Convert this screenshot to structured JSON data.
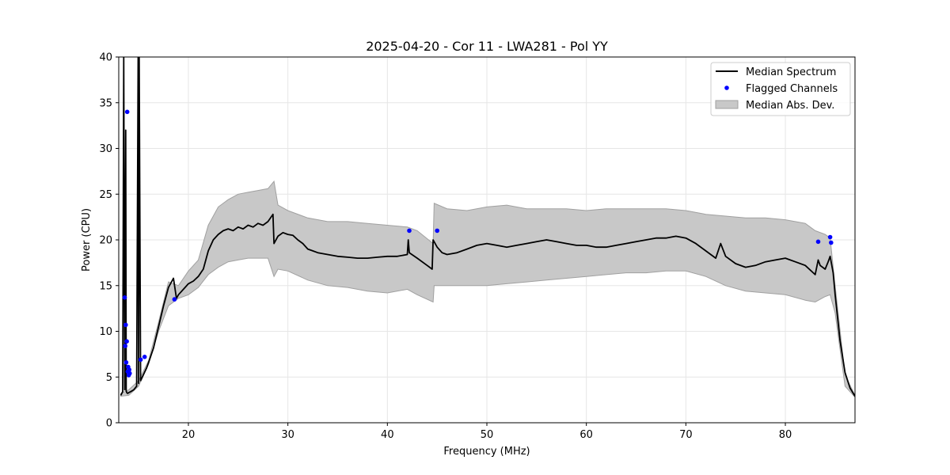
{
  "chart_data": {
    "type": "line",
    "title": "2025-04-20 - Cor 11 - LWA281 - Pol YY",
    "xlabel": "Frequency (MHz)",
    "ylabel": "Power (CPU)",
    "xlim": [
      13.0,
      87.0
    ],
    "ylim": [
      0,
      40
    ],
    "xticks": [
      20,
      30,
      40,
      50,
      60,
      70,
      80
    ],
    "yticks": [
      0,
      5,
      10,
      15,
      20,
      25,
      30,
      35,
      40
    ],
    "grid": true,
    "legend_position": "top-right",
    "colors": {
      "median": "#000000",
      "flagged": "#0000ff",
      "mad_fill": "#c8c8c8",
      "mad_edge": "#a0a0a0"
    },
    "legend": [
      {
        "label": "Median Spectrum",
        "kind": "line"
      },
      {
        "label": "Flagged Channels",
        "kind": "marker"
      },
      {
        "label": "Median Abs. Dev.",
        "kind": "patch"
      }
    ],
    "series": [
      {
        "name": "Median Spectrum",
        "x": [
          13.2,
          13.4,
          13.5,
          13.6,
          13.7,
          13.75,
          13.8,
          13.9,
          14.0,
          14.2,
          14.5,
          14.8,
          14.95,
          15.0,
          15.05,
          15.2,
          15.5,
          15.8,
          16.0,
          16.5,
          17.0,
          17.5,
          18.0,
          18.5,
          18.8,
          19.0,
          19.5,
          20.0,
          20.5,
          21.0,
          21.5,
          22.0,
          22.5,
          23.0,
          23.5,
          24.0,
          24.5,
          25.0,
          25.5,
          26.0,
          26.5,
          27.0,
          27.5,
          28.0,
          28.5,
          28.6,
          29.0,
          29.5,
          30.0,
          30.5,
          31.0,
          31.5,
          32.0,
          32.5,
          33.0,
          34.0,
          35.0,
          36.0,
          37.0,
          38.0,
          39.0,
          40.0,
          41.0,
          42.0,
          42.1,
          42.2,
          43.0,
          44.0,
          44.5,
          44.6,
          45.0,
          45.5,
          46.0,
          47.0,
          48.0,
          49.0,
          50.0,
          51.0,
          52.0,
          53.0,
          54.0,
          55.0,
          56.0,
          57.0,
          58.0,
          59.0,
          60.0,
          61.0,
          62.0,
          63.0,
          64.0,
          65.0,
          66.0,
          67.0,
          68.0,
          69.0,
          70.0,
          71.0,
          72.0,
          73.0,
          73.5,
          74.0,
          75.0,
          76.0,
          77.0,
          78.0,
          79.0,
          80.0,
          81.0,
          82.0,
          83.0,
          83.3,
          83.5,
          84.0,
          84.3,
          84.5,
          84.8,
          85.0,
          85.5,
          86.0,
          86.5,
          87.0
        ],
        "y": [
          3.0,
          3.4,
          40.0,
          3.6,
          32.0,
          3.5,
          3.3,
          3.2,
          3.3,
          3.4,
          3.6,
          4.0,
          40.0,
          4.3,
          40.0,
          4.6,
          5.3,
          6.0,
          6.6,
          8.2,
          10.5,
          12.8,
          14.8,
          15.8,
          13.6,
          14.0,
          14.6,
          15.2,
          15.5,
          16.0,
          16.8,
          18.8,
          20.0,
          20.6,
          21.0,
          21.2,
          21.0,
          21.4,
          21.2,
          21.6,
          21.4,
          21.8,
          21.6,
          22.0,
          22.8,
          19.6,
          20.4,
          20.8,
          20.6,
          20.5,
          20.0,
          19.6,
          19.0,
          18.8,
          18.6,
          18.4,
          18.2,
          18.1,
          18.0,
          18.0,
          18.1,
          18.2,
          18.2,
          18.4,
          20.0,
          18.6,
          18.0,
          17.2,
          16.8,
          20.0,
          19.2,
          18.6,
          18.4,
          18.6,
          19.0,
          19.4,
          19.6,
          19.4,
          19.2,
          19.4,
          19.6,
          19.8,
          20.0,
          19.8,
          19.6,
          19.4,
          19.4,
          19.2,
          19.2,
          19.4,
          19.6,
          19.8,
          20.0,
          20.2,
          20.2,
          20.4,
          20.2,
          19.6,
          18.8,
          18.0,
          19.6,
          18.2,
          17.4,
          17.0,
          17.2,
          17.6,
          17.8,
          18.0,
          17.6,
          17.2,
          16.2,
          17.8,
          17.2,
          16.8,
          17.6,
          18.2,
          16.4,
          14.0,
          9.0,
          5.5,
          3.8,
          2.9
        ]
      },
      {
        "name": "Median Abs. Dev.",
        "x": [
          13.2,
          14.0,
          15.0,
          16.0,
          17.0,
          18.0,
          19.0,
          20.0,
          21.0,
          22.0,
          23.0,
          24.0,
          25.0,
          26.0,
          27.0,
          28.0,
          28.6,
          29.0,
          30.0,
          32.0,
          34.0,
          36.0,
          38.0,
          40.0,
          42.0,
          43.0,
          44.6,
          44.7,
          46.0,
          48.0,
          50.0,
          52.0,
          54.0,
          56.0,
          58.0,
          60.0,
          62.0,
          64.0,
          66.0,
          68.0,
          70.0,
          72.0,
          74.0,
          76.0,
          78.0,
          80.0,
          82.0,
          83.0,
          84.0,
          84.5,
          85.0,
          86.0,
          87.0
        ],
        "upper": [
          3.2,
          3.6,
          4.6,
          6.8,
          11.0,
          15.4,
          15.0,
          16.6,
          17.8,
          21.6,
          23.6,
          24.4,
          25.0,
          25.2,
          25.4,
          25.6,
          26.4,
          23.8,
          23.2,
          22.4,
          22.0,
          22.0,
          21.8,
          21.6,
          21.4,
          21.0,
          19.6,
          24.0,
          23.4,
          23.2,
          23.6,
          23.8,
          23.4,
          23.4,
          23.4,
          23.2,
          23.4,
          23.4,
          23.4,
          23.4,
          23.2,
          22.8,
          22.6,
          22.4,
          22.4,
          22.2,
          21.8,
          21.0,
          20.6,
          20.2,
          15.0,
          5.2,
          3.0
        ],
        "lower": [
          2.9,
          3.0,
          4.0,
          6.4,
          10.0,
          12.8,
          13.6,
          14.0,
          14.8,
          16.2,
          17.0,
          17.6,
          17.8,
          18.0,
          18.0,
          18.0,
          16.0,
          16.8,
          16.6,
          15.6,
          15.0,
          14.8,
          14.4,
          14.2,
          14.6,
          14.0,
          13.2,
          15.0,
          15.0,
          15.0,
          15.0,
          15.2,
          15.4,
          15.6,
          15.8,
          16.0,
          16.2,
          16.4,
          16.4,
          16.6,
          16.6,
          16.0,
          15.0,
          14.4,
          14.2,
          14.0,
          13.4,
          13.2,
          13.8,
          14.0,
          12.0,
          4.0,
          2.8
        ]
      },
      {
        "name": "Flagged Channels",
        "kind": "scatter",
        "x": [
          13.6,
          13.65,
          13.7,
          13.75,
          13.8,
          13.85,
          13.9,
          13.95,
          14.0,
          14.05,
          14.1,
          15.2,
          15.6,
          18.6,
          42.2,
          45.0,
          83.3,
          84.5,
          84.6
        ],
        "y": [
          13.7,
          8.4,
          10.7,
          6.6,
          8.9,
          34.0,
          5.6,
          6.1,
          5.2,
          5.8,
          5.4,
          6.9,
          7.2,
          13.5,
          21.0,
          21.0,
          19.8,
          20.3,
          19.7
        ]
      }
    ]
  }
}
